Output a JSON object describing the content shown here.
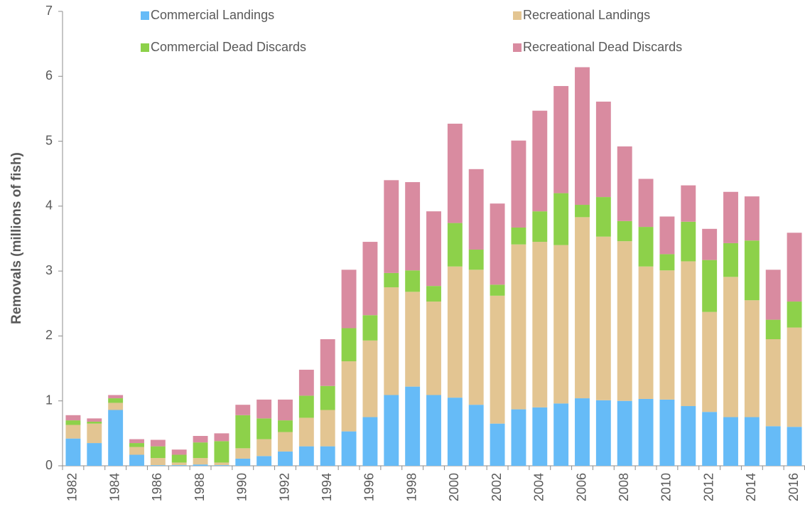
{
  "chart_data": {
    "type": "stacked_bar",
    "y_label": "Removals  (millions of fish)",
    "categories": [
      "1982",
      null,
      "1984",
      null,
      "1986",
      null,
      "1988",
      null,
      "1990",
      null,
      "1992",
      null,
      "1994",
      null,
      "1996",
      null,
      "1998",
      null,
      "2000",
      null,
      "2002",
      null,
      "2004",
      null,
      "2006",
      null,
      "2008",
      null,
      "2010",
      null,
      "2012",
      null,
      "2014",
      null,
      "2016"
    ],
    "series": [
      {
        "name": "Commercial Landings",
        "color": "#66bbf7",
        "values": [
          0.42,
          0.35,
          0.86,
          0.17,
          0.01,
          0.01,
          0.02,
          0.01,
          0.11,
          0.15,
          0.22,
          0.3,
          0.3,
          0.53,
          0.75,
          1.09,
          1.22,
          1.09,
          1.05,
          0.94,
          0.65,
          0.87,
          0.9,
          0.96,
          1.04,
          1.01,
          1.0,
          1.03,
          1.02,
          0.92,
          0.83,
          0.75,
          0.75,
          0.61,
          0.6
        ]
      },
      {
        "name": "Recreational Landings",
        "color": "#e3c592",
        "values": [
          0.21,
          0.3,
          0.11,
          0.12,
          0.11,
          0.04,
          0.1,
          0.04,
          0.16,
          0.26,
          0.3,
          0.44,
          0.56,
          1.08,
          1.18,
          1.66,
          1.46,
          1.44,
          2.02,
          2.08,
          1.97,
          2.54,
          2.55,
          2.44,
          2.79,
          2.52,
          2.46,
          2.04,
          1.99,
          2.23,
          1.54,
          2.16,
          1.8,
          1.34,
          1.53
        ]
      },
      {
        "name": "Commercial Dead Discards",
        "color": "#8dd14a",
        "values": [
          0.07,
          0.03,
          0.07,
          0.06,
          0.18,
          0.12,
          0.24,
          0.33,
          0.51,
          0.32,
          0.18,
          0.34,
          0.37,
          0.51,
          0.39,
          0.22,
          0.33,
          0.24,
          0.67,
          0.31,
          0.17,
          0.26,
          0.47,
          0.8,
          0.19,
          0.61,
          0.31,
          0.61,
          0.25,
          0.61,
          0.8,
          0.52,
          0.92,
          0.3,
          0.4
        ]
      },
      {
        "name": "Recreational Dead Discards",
        "color": "#d98ba0",
        "values": [
          0.08,
          0.05,
          0.05,
          0.06,
          0.1,
          0.08,
          0.1,
          0.12,
          0.16,
          0.29,
          0.32,
          0.4,
          0.72,
          0.9,
          1.13,
          1.43,
          1.36,
          1.15,
          1.53,
          1.24,
          1.25,
          1.34,
          1.55,
          1.65,
          2.12,
          1.47,
          1.15,
          0.74,
          0.58,
          0.56,
          0.48,
          0.79,
          0.68,
          0.77,
          1.06
        ]
      }
    ],
    "ylim": [
      0,
      7
    ],
    "yticks": [
      0,
      1,
      2,
      3,
      4,
      5,
      6,
      7
    ]
  }
}
